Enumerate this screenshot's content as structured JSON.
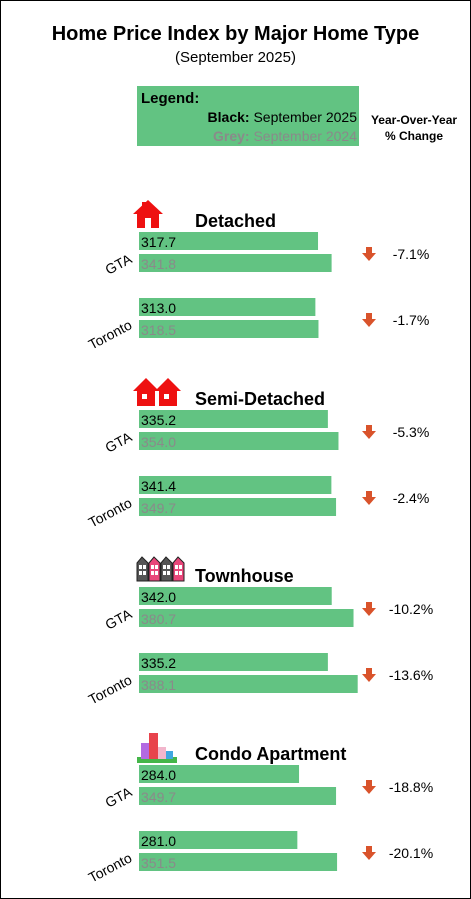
{
  "title": "Home Price Index by Major Home Type",
  "subtitle": "(September 2025)",
  "legend": {
    "heading": "Legend:",
    "current_key": "Black:",
    "current_label": "September 2025",
    "prior_key": "Grey:",
    "prior_label": "September 2024"
  },
  "yoy_header_line1": "Year-Over-Year",
  "yoy_header_line2": "% Change",
  "colors": {
    "bar": "#62c382",
    "current_text": "#000000",
    "prior_text": "#8a8a8a",
    "down_arrow": "#d9532b",
    "house_icon": "#ee1111"
  },
  "chart_data": {
    "type": "bar",
    "orientation": "horizontal",
    "series_names": [
      "September 2025",
      "September 2024"
    ],
    "groups": [
      {
        "home_type": "Detached",
        "icon": "house-icon",
        "rows": [
          {
            "region": "GTA",
            "values": [
              317.7,
              341.8
            ],
            "labels": [
              "317.7",
              "341.8"
            ],
            "yoy": "-7.1%",
            "trend": "down"
          },
          {
            "region": "Toronto",
            "values": [
              313.0,
              318.5
            ],
            "labels": [
              "313.0",
              "318.5"
            ],
            "yoy": "-1.7%",
            "trend": "down"
          }
        ]
      },
      {
        "home_type": "Semi-Detached",
        "icon": "semi-detached-icon",
        "rows": [
          {
            "region": "GTA",
            "values": [
              335.2,
              354.0
            ],
            "labels": [
              "335.2",
              "354.0"
            ],
            "yoy": "-5.3%",
            "trend": "down"
          },
          {
            "region": "Toronto",
            "values": [
              341.4,
              349.7
            ],
            "labels": [
              "341.4",
              "349.7"
            ],
            "yoy": "-2.4%",
            "trend": "down"
          }
        ]
      },
      {
        "home_type": "Townhouse",
        "icon": "townhouse-icon",
        "rows": [
          {
            "region": "GTA",
            "values": [
              342.0,
              380.7
            ],
            "labels": [
              "342.0",
              "380.7"
            ],
            "yoy": "-10.2%",
            "trend": "down"
          },
          {
            "region": "Toronto",
            "values": [
              335.2,
              388.1
            ],
            "labels": [
              "335.2",
              "388.1"
            ],
            "yoy": "-13.6%",
            "trend": "down"
          }
        ]
      },
      {
        "home_type": "Condo Apartment",
        "icon": "condo-apartment-icon",
        "rows": [
          {
            "region": "GTA",
            "values": [
              284.0,
              349.7
            ],
            "labels": [
              "284.0",
              "349.7"
            ],
            "yoy": "-18.8%",
            "trend": "down"
          },
          {
            "region": "Toronto",
            "values": [
              281.0,
              351.5
            ],
            "labels": [
              "281.0",
              "351.5"
            ],
            "yoy": "-20.1%",
            "trend": "down"
          }
        ]
      }
    ]
  }
}
